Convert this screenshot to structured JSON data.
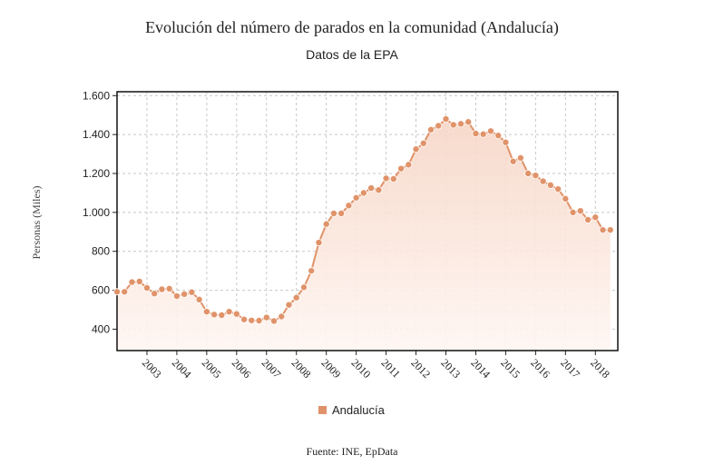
{
  "header": {
    "title": "Evolución del número de parados en la comunidad (Andalucía)",
    "subtitle": "Datos de la EPA"
  },
  "footer": {
    "source": "Fuente: INE, EpData"
  },
  "colors": {
    "series": "#e0936a",
    "fill_top": "#f6d6c6",
    "fill_bottom": "#fff6f2",
    "grid": "#c8c8c8"
  },
  "chart_data": {
    "type": "area",
    "title": "Evolución del número de parados en la comunidad (Andalucía)",
    "subtitle": "Datos de la EPA",
    "ylabel": "Personas (Miles)",
    "xlabel": "",
    "ylim": [
      290,
      1620
    ],
    "yticks": [
      400,
      600,
      800,
      1000,
      1200,
      1400,
      1600
    ],
    "ytick_labels": [
      "400",
      "600",
      "800",
      "1.000",
      "1.200",
      "1.400",
      "1.600"
    ],
    "xlim": [
      2002.0,
      2018.75
    ],
    "xticks": [
      2003,
      2004,
      2005,
      2006,
      2007,
      2008,
      2009,
      2010,
      2011,
      2012,
      2013,
      2014,
      2015,
      2016,
      2017,
      2018
    ],
    "grid": true,
    "legend": {
      "position": "bottom",
      "entries": [
        "Andalucía"
      ]
    },
    "series": [
      {
        "name": "Andalucía",
        "x": [
          2002.0,
          2002.25,
          2002.5,
          2002.75,
          2003.0,
          2003.25,
          2003.5,
          2003.75,
          2004.0,
          2004.25,
          2004.5,
          2004.75,
          2005.0,
          2005.25,
          2005.5,
          2005.75,
          2006.0,
          2006.25,
          2006.5,
          2006.75,
          2007.0,
          2007.25,
          2007.5,
          2007.75,
          2008.0,
          2008.25,
          2008.5,
          2008.75,
          2009.0,
          2009.25,
          2009.5,
          2009.75,
          2010.0,
          2010.25,
          2010.5,
          2010.75,
          2011.0,
          2011.25,
          2011.5,
          2011.75,
          2012.0,
          2012.25,
          2012.5,
          2012.75,
          2013.0,
          2013.25,
          2013.5,
          2013.75,
          2014.0,
          2014.25,
          2014.5,
          2014.75,
          2015.0,
          2015.25,
          2015.5,
          2015.75,
          2016.0,
          2016.25,
          2016.5,
          2016.75,
          2017.0,
          2017.25,
          2017.5,
          2017.75,
          2018.0,
          2018.25,
          2018.5
        ],
        "values": [
          592,
          592,
          642,
          645,
          612,
          583,
          605,
          608,
          570,
          580,
          590,
          552,
          490,
          475,
          472,
          490,
          478,
          450,
          445,
          444,
          460,
          442,
          465,
          525,
          562,
          615,
          700,
          845,
          940,
          995,
          995,
          1035,
          1075,
          1100,
          1125,
          1115,
          1175,
          1172,
          1225,
          1245,
          1325,
          1355,
          1425,
          1445,
          1480,
          1450,
          1455,
          1465,
          1405,
          1402,
          1418,
          1395,
          1360,
          1262,
          1280,
          1200,
          1190,
          1160,
          1140,
          1120,
          1070,
          1000,
          1008,
          962,
          975,
          910,
          910
        ]
      }
    ]
  }
}
